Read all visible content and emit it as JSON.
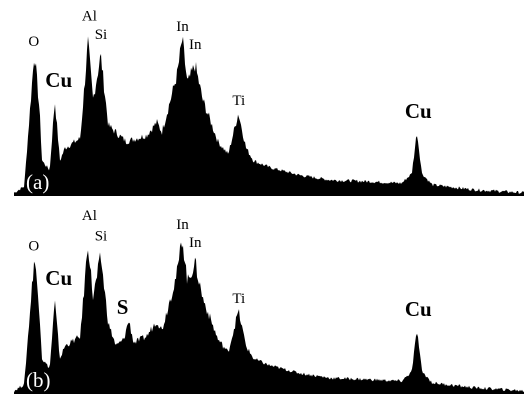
{
  "chart_data": [
    {
      "type": "area",
      "panel_label": "(a)",
      "color": "#000000",
      "xlim": [
        0,
        10
      ],
      "ylim": [
        0,
        100
      ],
      "grid": false,
      "legend": "none",
      "x_values_note_free": true,
      "series": [
        {
          "points": [
            [
              0.0,
              2
            ],
            [
              0.2,
              6
            ],
            [
              0.3,
              48
            ],
            [
              0.4,
              90
            ],
            [
              0.5,
              54
            ],
            [
              0.55,
              22
            ],
            [
              0.7,
              16
            ],
            [
              0.8,
              60
            ],
            [
              0.9,
              22
            ],
            [
              1.0,
              30
            ],
            [
              1.3,
              36
            ],
            [
              1.45,
              96
            ],
            [
              1.55,
              60
            ],
            [
              1.7,
              88
            ],
            [
              1.85,
              44
            ],
            [
              2.2,
              34
            ],
            [
              2.6,
              38
            ],
            [
              2.8,
              46
            ],
            [
              2.9,
              40
            ],
            [
              3.2,
              76
            ],
            [
              3.3,
              98
            ],
            [
              3.4,
              70
            ],
            [
              3.55,
              82
            ],
            [
              3.7,
              60
            ],
            [
              4.0,
              34
            ],
            [
              4.2,
              26
            ],
            [
              4.4,
              52
            ],
            [
              4.55,
              30
            ],
            [
              4.7,
              22
            ],
            [
              5.0,
              18
            ],
            [
              5.6,
              13
            ],
            [
              6.2,
              10
            ],
            [
              7.0,
              9
            ],
            [
              7.6,
              8
            ],
            [
              7.8,
              14
            ],
            [
              7.9,
              40
            ],
            [
              8.0,
              14
            ],
            [
              8.2,
              7
            ],
            [
              9.0,
              4
            ],
            [
              10.0,
              2
            ]
          ]
        }
      ],
      "annotations": [
        {
          "text": "O",
          "x": 0.4,
          "style": "small"
        },
        {
          "text": "Cu",
          "x": 0.85,
          "style": "bold"
        },
        {
          "text": "Al",
          "x": 1.45,
          "style": "small"
        },
        {
          "text": "Si",
          "x": 1.7,
          "style": "small"
        },
        {
          "text": "In",
          "x": 3.3,
          "style": "small"
        },
        {
          "text": "In",
          "x": 3.55,
          "style": "small"
        },
        {
          "text": "Ti",
          "x": 4.4,
          "style": "small"
        },
        {
          "text": "Cu",
          "x": 7.9,
          "style": "bold"
        }
      ]
    },
    {
      "type": "area",
      "panel_label": "(b)",
      "color": "#000000",
      "xlim": [
        0,
        10
      ],
      "ylim": [
        0,
        100
      ],
      "grid": false,
      "legend": "none",
      "series": [
        {
          "points": [
            [
              0.0,
              2
            ],
            [
              0.2,
              6
            ],
            [
              0.3,
              46
            ],
            [
              0.4,
              86
            ],
            [
              0.5,
              52
            ],
            [
              0.55,
              22
            ],
            [
              0.7,
              16
            ],
            [
              0.8,
              58
            ],
            [
              0.9,
              22
            ],
            [
              1.0,
              30
            ],
            [
              1.3,
              36
            ],
            [
              1.45,
              95
            ],
            [
              1.55,
              60
            ],
            [
              1.7,
              86
            ],
            [
              1.85,
              44
            ],
            [
              2.0,
              30
            ],
            [
              2.15,
              34
            ],
            [
              2.25,
              46
            ],
            [
              2.35,
              32
            ],
            [
              2.6,
              36
            ],
            [
              2.8,
              46
            ],
            [
              2.9,
              40
            ],
            [
              3.2,
              76
            ],
            [
              3.3,
              98
            ],
            [
              3.4,
              70
            ],
            [
              3.55,
              82
            ],
            [
              3.7,
              60
            ],
            [
              4.0,
              34
            ],
            [
              4.2,
              26
            ],
            [
              4.4,
              52
            ],
            [
              4.55,
              30
            ],
            [
              4.7,
              22
            ],
            [
              5.0,
              18
            ],
            [
              5.6,
              13
            ],
            [
              6.2,
              10
            ],
            [
              7.0,
              9
            ],
            [
              7.6,
              8
            ],
            [
              7.8,
              14
            ],
            [
              7.9,
              40
            ],
            [
              8.0,
              14
            ],
            [
              8.2,
              7
            ],
            [
              9.0,
              4
            ],
            [
              10.0,
              2
            ]
          ]
        }
      ],
      "annotations": [
        {
          "text": "O",
          "x": 0.4,
          "style": "small"
        },
        {
          "text": "Cu",
          "x": 0.85,
          "style": "bold"
        },
        {
          "text": "Al",
          "x": 1.45,
          "style": "small"
        },
        {
          "text": "Si",
          "x": 1.7,
          "style": "small"
        },
        {
          "text": "S",
          "x": 2.25,
          "style": "bold"
        },
        {
          "text": "In",
          "x": 3.3,
          "style": "small"
        },
        {
          "text": "In",
          "x": 3.55,
          "style": "small"
        },
        {
          "text": "Ti",
          "x": 4.4,
          "style": "small"
        },
        {
          "text": "Cu",
          "x": 7.9,
          "style": "bold"
        }
      ]
    }
  ]
}
